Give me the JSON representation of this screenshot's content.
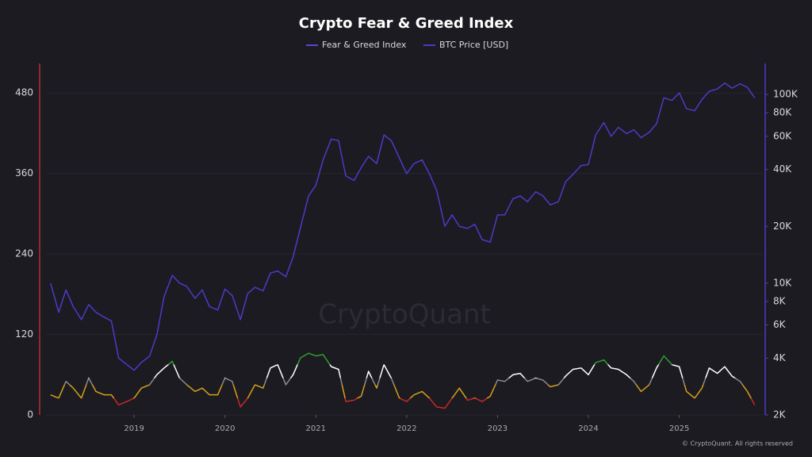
{
  "chart_data": {
    "type": "line",
    "title": "Crypto Fear & Greed Index",
    "watermark": "CryptoQuant",
    "footer": "© CryptoQuant. All rights reserved",
    "x": [
      2018.08,
      2018.17,
      2018.25,
      2018.33,
      2018.42,
      2018.5,
      2018.58,
      2018.67,
      2018.75,
      2018.83,
      2018.92,
      2019,
      2019.08,
      2019.17,
      2019.25,
      2019.33,
      2019.42,
      2019.5,
      2019.58,
      2019.67,
      2019.75,
      2019.83,
      2019.92,
      2020,
      2020.08,
      2020.17,
      2020.25,
      2020.33,
      2020.42,
      2020.5,
      2020.58,
      2020.67,
      2020.75,
      2020.83,
      2020.92,
      2021,
      2021.08,
      2021.17,
      2021.25,
      2021.33,
      2021.42,
      2021.5,
      2021.58,
      2021.67,
      2021.75,
      2021.83,
      2021.92,
      2022,
      2022.08,
      2022.17,
      2022.25,
      2022.33,
      2022.42,
      2022.5,
      2022.58,
      2022.67,
      2022.75,
      2022.83,
      2022.92,
      2023,
      2023.08,
      2023.17,
      2023.25,
      2023.33,
      2023.42,
      2023.5,
      2023.58,
      2023.67,
      2023.75,
      2023.83,
      2023.92,
      2024,
      2024.08,
      2024.17,
      2024.25,
      2024.33,
      2024.42,
      2024.5,
      2024.58,
      2024.67,
      2024.75,
      2024.83,
      2024.92,
      2025,
      2025.08,
      2025.17,
      2025.25,
      2025.33,
      2025.42,
      2025.5,
      2025.58,
      2025.67,
      2025.75,
      2025.83
    ],
    "series": [
      {
        "name": "Fear & Greed Index",
        "color": "#5b45d6",
        "axis": "y",
        "values": [
          30,
          25,
          50,
          40,
          25,
          55,
          35,
          30,
          30,
          15,
          20,
          25,
          40,
          45,
          60,
          70,
          80,
          55,
          45,
          35,
          40,
          30,
          30,
          55,
          50,
          12,
          25,
          45,
          40,
          70,
          75,
          45,
          60,
          85,
          92,
          88,
          90,
          72,
          68,
          20,
          22,
          28,
          65,
          40,
          75,
          55,
          25,
          20,
          30,
          35,
          25,
          12,
          10,
          25,
          40,
          22,
          25,
          20,
          28,
          52,
          50,
          60,
          62,
          50,
          55,
          52,
          42,
          45,
          58,
          68,
          70,
          60,
          78,
          82,
          70,
          68,
          60,
          50,
          35,
          45,
          70,
          88,
          75,
          72,
          35,
          25,
          40,
          70,
          62,
          72,
          58,
          50,
          35,
          15
        ]
      },
      {
        "name": "BTC Price [USD]",
        "color": "#4b3bc7",
        "axis": "y2",
        "values": [
          10000,
          7000,
          9200,
          7500,
          6400,
          7700,
          7000,
          6600,
          6300,
          4000,
          3700,
          3450,
          3800,
          4100,
          5300,
          8500,
          11000,
          10000,
          9600,
          8300,
          9200,
          7500,
          7200,
          9300,
          8600,
          6400,
          8800,
          9500,
          9100,
          11300,
          11600,
          10800,
          13800,
          19600,
          29000,
          33000,
          45000,
          58000,
          57000,
          37000,
          35000,
          41000,
          47000,
          43000,
          61000,
          57000,
          46000,
          38000,
          43000,
          45000,
          38000,
          31000,
          20000,
          23000,
          20000,
          19500,
          20500,
          17000,
          16500,
          23000,
          23000,
          28000,
          29000,
          27000,
          30500,
          29000,
          26000,
          27000,
          34500,
          37700,
          42000,
          42500,
          61000,
          71000,
          60000,
          67000,
          62000,
          65000,
          59000,
          63000,
          70000,
          96000,
          93000,
          102000,
          84000,
          82000,
          94000,
          104000,
          107000,
          115000,
          108000,
          114000,
          109000,
          96000
        ]
      }
    ],
    "color_bands": [
      {
        "from": 0,
        "to": 25,
        "color": "#c62828"
      },
      {
        "from": 25,
        "to": 45,
        "color": "#d4a017"
      },
      {
        "from": 45,
        "to": 55,
        "color": "#8a8a8a"
      },
      {
        "from": 55,
        "to": 75,
        "color": "#ffffff"
      },
      {
        "from": 75,
        "to": 100,
        "color": "#2e9e2e"
      }
    ],
    "xlim": [
      2018.03,
      2025.92
    ],
    "xticks": [
      2019,
      2020,
      2021,
      2022,
      2023,
      2024,
      2025
    ],
    "ylim": [
      0,
      524
    ],
    "yticks": [
      0,
      120,
      240,
      360,
      480
    ],
    "y2lim": [
      2000,
      146000
    ],
    "y2log": true,
    "y2ticks": [
      {
        "value": 2000,
        "label": "2K"
      },
      {
        "value": 4000,
        "label": "4K"
      },
      {
        "value": 6000,
        "label": "6K"
      },
      {
        "value": 8000,
        "label": "8K"
      },
      {
        "value": 10000,
        "label": "10K"
      },
      {
        "value": 20000,
        "label": "20K"
      },
      {
        "value": 40000,
        "label": "40K"
      },
      {
        "value": 60000,
        "label": "60K"
      },
      {
        "value": 80000,
        "label": "80K"
      },
      {
        "value": 100000,
        "label": "100K"
      }
    ],
    "grid": true
  }
}
